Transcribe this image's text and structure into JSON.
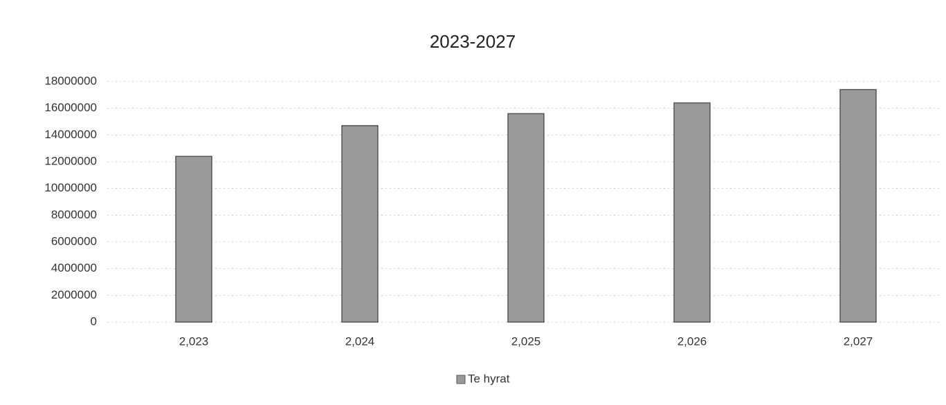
{
  "chart_data": {
    "type": "bar",
    "title": "2023-2027",
    "categories": [
      "2,023",
      "2,024",
      "2,025",
      "2,026",
      "2,027"
    ],
    "series": [
      {
        "name": "Te hyrat",
        "color": "#9a9a9a",
        "values": [
          12400000,
          14700000,
          15600000,
          16400000,
          17400000
        ]
      }
    ],
    "ylim": [
      0,
      18000000
    ],
    "yticks": [
      0,
      2000000,
      4000000,
      6000000,
      8000000,
      10000000,
      12000000,
      14000000,
      16000000,
      18000000
    ],
    "grid": true,
    "legend": "bottom"
  }
}
